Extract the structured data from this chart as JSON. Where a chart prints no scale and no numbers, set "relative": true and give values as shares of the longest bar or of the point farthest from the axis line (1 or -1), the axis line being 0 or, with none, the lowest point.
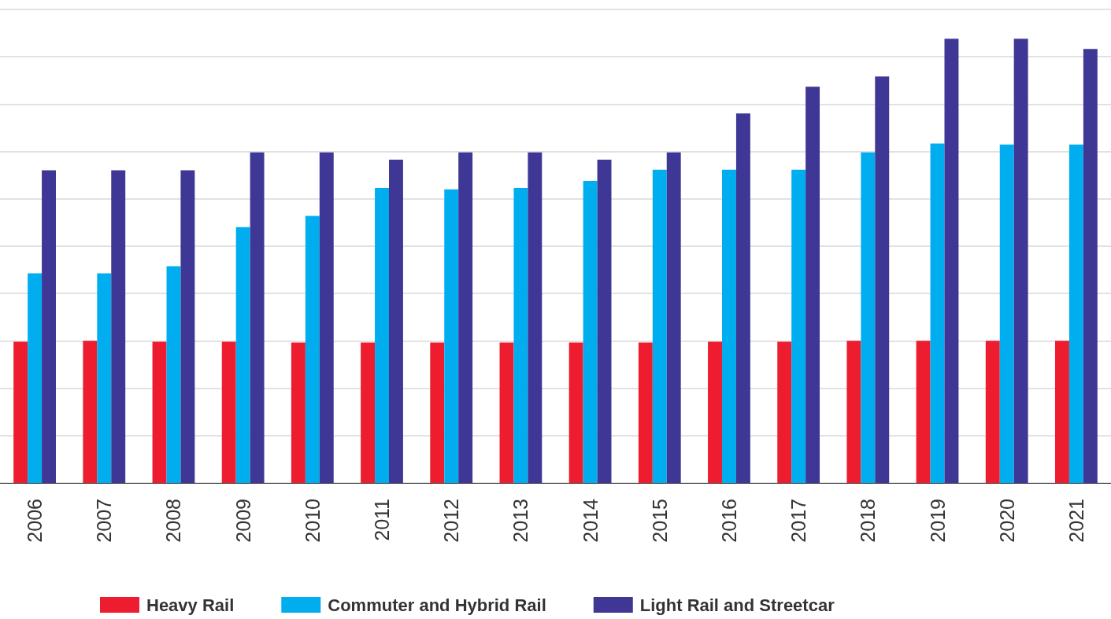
{
  "chart_data": {
    "type": "bar",
    "relative": true,
    "categories": [
      "2006",
      "2007",
      "2008",
      "2009",
      "2010",
      "2011",
      "2012",
      "2013",
      "2014",
      "2015",
      "2016",
      "2017",
      "2018",
      "2019",
      "2020",
      "2021"
    ],
    "series": [
      {
        "name": "Heavy Rail",
        "color": "#ed1c2e",
        "values": [
          0.318,
          0.32,
          0.318,
          0.318,
          0.316,
          0.316,
          0.316,
          0.316,
          0.316,
          0.316,
          0.318,
          0.318,
          0.32,
          0.32,
          0.32,
          0.32
        ]
      },
      {
        "name": "Commuter and Hybrid Rail",
        "color": "#00aeef",
        "values": [
          0.472,
          0.472,
          0.488,
          0.576,
          0.601,
          0.664,
          0.661,
          0.664,
          0.68,
          0.705,
          0.705,
          0.705,
          0.744,
          0.764,
          0.762,
          0.762
        ]
      },
      {
        "name": "Light Rail and Streetcar",
        "color": "#3f3795",
        "values": [
          0.704,
          0.704,
          0.704,
          0.744,
          0.744,
          0.728,
          0.744,
          0.744,
          0.728,
          0.744,
          0.832,
          0.892,
          0.915,
          1,
          1,
          0.977
        ]
      }
    ],
    "grid": "y",
    "legend": "bottom"
  }
}
